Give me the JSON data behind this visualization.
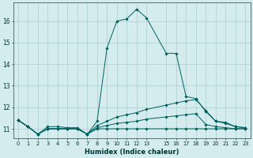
{
  "xlabel": "Humidex (Indice chaleur)",
  "bg_color": "#d4ecee",
  "line_color": "#006060",
  "grid_color": "#aacdd1",
  "xlim": [
    -0.5,
    23.5
  ],
  "ylim": [
    10.55,
    16.85
  ],
  "yticks": [
    11,
    12,
    13,
    14,
    15,
    16
  ],
  "xticks": [
    0,
    1,
    2,
    3,
    4,
    5,
    6,
    7,
    8,
    9,
    10,
    11,
    12,
    13,
    15,
    16,
    17,
    18,
    19,
    20,
    21,
    22,
    23
  ],
  "xtick_labels": [
    "0",
    "1",
    "2",
    "3",
    "4",
    "5",
    "6",
    "7",
    "8",
    "9",
    "10",
    "11",
    "12",
    "13",
    "15",
    "16",
    "17",
    "18",
    "19",
    "20",
    "21",
    "22",
    "23"
  ],
  "lines": [
    {
      "x": [
        0,
        1,
        2,
        3,
        4,
        5,
        6,
        7,
        8,
        9,
        10,
        11,
        12,
        13,
        15,
        16,
        17,
        18,
        19,
        20,
        21,
        22,
        23
      ],
      "y": [
        11.4,
        11.1,
        10.75,
        11.1,
        11.1,
        11.05,
        11.05,
        10.75,
        11.35,
        14.75,
        16.0,
        16.1,
        16.55,
        16.15,
        14.5,
        14.5,
        12.5,
        12.4,
        11.8,
        11.35,
        11.3,
        11.1,
        11.05
      ]
    },
    {
      "x": [
        0,
        1,
        2,
        3,
        4,
        5,
        6,
        7,
        8,
        9,
        10,
        11,
        12,
        13,
        15,
        16,
        17,
        18,
        19,
        20,
        21,
        22,
        23
      ],
      "y": [
        11.4,
        11.1,
        10.75,
        11.0,
        11.0,
        11.0,
        11.0,
        10.75,
        11.15,
        11.35,
        11.55,
        11.65,
        11.75,
        11.9,
        12.1,
        12.2,
        12.3,
        12.35,
        11.85,
        11.35,
        11.25,
        11.1,
        11.05
      ]
    },
    {
      "x": [
        0,
        1,
        2,
        3,
        4,
        5,
        6,
        7,
        8,
        9,
        10,
        11,
        12,
        13,
        15,
        16,
        17,
        18,
        19,
        20,
        21,
        22,
        23
      ],
      "y": [
        11.4,
        11.1,
        10.75,
        11.0,
        11.0,
        11.0,
        11.0,
        10.75,
        11.05,
        11.15,
        11.25,
        11.3,
        11.35,
        11.45,
        11.55,
        11.6,
        11.65,
        11.7,
        11.2,
        11.1,
        11.05,
        11.0,
        11.0
      ]
    },
    {
      "x": [
        0,
        1,
        2,
        3,
        4,
        5,
        6,
        7,
        8,
        9,
        10,
        11,
        12,
        13,
        15,
        16,
        17,
        18,
        19,
        20,
        21,
        22,
        23
      ],
      "y": [
        11.4,
        11.1,
        10.75,
        11.0,
        11.0,
        11.0,
        11.0,
        10.75,
        11.0,
        11.0,
        11.0,
        11.0,
        11.0,
        11.0,
        11.0,
        11.0,
        11.0,
        11.0,
        11.0,
        11.0,
        11.0,
        11.0,
        11.0
      ]
    }
  ]
}
